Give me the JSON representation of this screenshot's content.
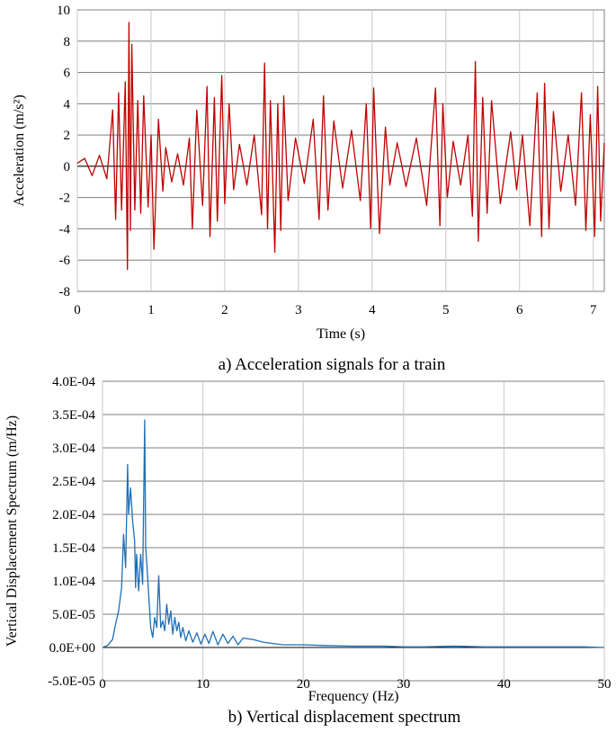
{
  "chart_data": [
    {
      "type": "line",
      "caption": "a) Acceleration signals for a train",
      "xlabel": "Time (s)",
      "ylabel": "Acceleration (m/s²)",
      "xlim": [
        0,
        7.15
      ],
      "ylim": [
        -8,
        10
      ],
      "xticks": [
        0,
        1,
        2,
        3,
        4,
        5,
        6,
        7
      ],
      "yticks": [
        10,
        8,
        6,
        4,
        2,
        0,
        -2,
        -4,
        -6,
        -8
      ],
      "grid": true,
      "legend": "none",
      "color": "#c00000",
      "series": [
        {
          "x": [
            0.0,
            0.1,
            0.2,
            0.3,
            0.4,
            0.48,
            0.52,
            0.56,
            0.6,
            0.65,
            0.68,
            0.7,
            0.72,
            0.74,
            0.78,
            0.82,
            0.86,
            0.9,
            0.96,
            1.0,
            1.04,
            1.1,
            1.16,
            1.2,
            1.28,
            1.36,
            1.44,
            1.52,
            1.56,
            1.62,
            1.7,
            1.76,
            1.8,
            1.86,
            1.9,
            1.96,
            2.0,
            2.06,
            2.12,
            2.2,
            2.3,
            2.4,
            2.5,
            2.54,
            2.58,
            2.62,
            2.68,
            2.72,
            2.76,
            2.8,
            2.86,
            2.96,
            3.08,
            3.2,
            3.28,
            3.34,
            3.4,
            3.48,
            3.6,
            3.72,
            3.84,
            3.92,
            3.98,
            4.02,
            4.1,
            4.18,
            4.24,
            4.34,
            4.46,
            4.6,
            4.74,
            4.86,
            4.92,
            4.96,
            5.02,
            5.1,
            5.2,
            5.3,
            5.36,
            5.4,
            5.44,
            5.5,
            5.56,
            5.62,
            5.74,
            5.88,
            5.96,
            6.04,
            6.14,
            6.24,
            6.3,
            6.34,
            6.4,
            6.46,
            6.56,
            6.66,
            6.76,
            6.84,
            6.9,
            6.96,
            7.02,
            7.06,
            7.1,
            7.15
          ],
          "y": [
            0.2,
            0.5,
            -0.6,
            0.7,
            -0.8,
            3.6,
            -3.4,
            4.7,
            -2.8,
            5.4,
            -6.6,
            9.2,
            -4.1,
            7.8,
            -2.8,
            4.2,
            -3.0,
            4.5,
            -2.6,
            2.0,
            -5.3,
            3.0,
            -1.6,
            1.2,
            -1.0,
            0.8,
            -1.2,
            1.8,
            -4.0,
            3.6,
            -2.5,
            5.1,
            -4.5,
            4.4,
            -3.5,
            5.8,
            -2.4,
            4.0,
            -1.5,
            1.4,
            -1.2,
            2.0,
            -3.1,
            6.6,
            -4.0,
            4.2,
            -5.5,
            4.0,
            -4.1,
            4.5,
            -2.2,
            1.8,
            -1.1,
            3.0,
            -3.4,
            4.5,
            -2.8,
            2.9,
            -1.4,
            2.3,
            -2.2,
            4.0,
            -4.0,
            5.0,
            -4.3,
            2.5,
            -1.2,
            1.5,
            -1.3,
            1.8,
            -2.5,
            5.0,
            -3.8,
            4.0,
            -2.0,
            1.6,
            -1.2,
            2.0,
            -3.2,
            6.7,
            -4.8,
            4.4,
            -3.0,
            4.2,
            -2.4,
            2.2,
            -1.5,
            2.0,
            -3.8,
            4.7,
            -4.5,
            5.3,
            -4.0,
            3.5,
            -1.6,
            2.0,
            -2.5,
            4.7,
            -4.1,
            3.3,
            -4.5,
            5.1,
            -3.5,
            1.5
          ]
        }
      ]
    },
    {
      "type": "line",
      "caption": "b) Vertical displacement spectrum",
      "xlabel": "Frequency (Hz)",
      "ylabel": "Vertical Displacement Spectrum (m/Hz)",
      "xlim": [
        0,
        50
      ],
      "ylim": [
        -5e-05,
        0.0004
      ],
      "xticks": [
        0,
        10,
        20,
        30,
        40,
        50
      ],
      "yticks": [
        "4.0E-04",
        "3.5E-04",
        "3.0E-04",
        "2.5E-04",
        "2.0E-04",
        "1.5E-04",
        "1.0E-04",
        "5.0E-05",
        "0.0E+00",
        "-5.0E-05"
      ],
      "grid": true,
      "legend": "none",
      "color": "#1f6fb4",
      "series": [
        {
          "x": [
            0,
            0.5,
            1.0,
            1.3,
            1.6,
            1.9,
            2.1,
            2.3,
            2.5,
            2.6,
            2.8,
            3.0,
            3.2,
            3.3,
            3.4,
            3.6,
            3.8,
            4.0,
            4.2,
            4.3,
            4.4,
            4.6,
            4.8,
            5.0,
            5.2,
            5.4,
            5.6,
            5.8,
            6.0,
            6.2,
            6.4,
            6.6,
            6.8,
            7.0,
            7.2,
            7.4,
            7.6,
            7.8,
            8.0,
            8.3,
            8.6,
            9.0,
            9.4,
            9.8,
            10.2,
            10.6,
            11.0,
            11.5,
            12.0,
            12.5,
            13.0,
            13.5,
            14.0,
            15.0,
            16.0,
            17.0,
            18.0,
            20.0,
            22.0,
            25.0,
            28.0,
            30.0,
            32.0,
            35.0,
            38.0,
            40.0,
            42.0,
            45.0,
            48.0,
            50.0
          ],
          "y": [
            0.0,
            3e-06,
            1.2e-05,
            3.5e-05,
            5.5e-05,
            9e-05,
            0.00017,
            0.00012,
            0.000275,
            0.0002,
            0.00024,
            0.00019,
            0.00016,
            9e-05,
            0.00014,
            8.5e-05,
            0.00014,
            9.5e-05,
            0.000342,
            0.00015,
            0.00013,
            8e-05,
            3e-05,
            1.5e-05,
            4.5e-05,
            3e-05,
            0.000108,
            3e-05,
            4e-05,
            2.5e-05,
            6.5e-05,
            3.5e-05,
            5.5e-05,
            2e-05,
            4.5e-05,
            2.5e-05,
            3.8e-05,
            1.5e-05,
            3e-05,
            1e-05,
            2.5e-05,
            8e-06,
            2.2e-05,
            5e-06,
            2e-05,
            6e-06,
            2.4e-05,
            4e-06,
            2e-05,
            6e-06,
            1.7e-05,
            4e-06,
            1.4e-05,
            1.2e-05,
            8e-06,
            6e-06,
            4e-06,
            4e-06,
            3e-06,
            2e-06,
            2e-06,
            1e-06,
            1e-06,
            2e-06,
            1e-06,
            1e-06,
            1e-06,
            1e-06,
            1e-06,
            0.0
          ]
        }
      ]
    }
  ]
}
